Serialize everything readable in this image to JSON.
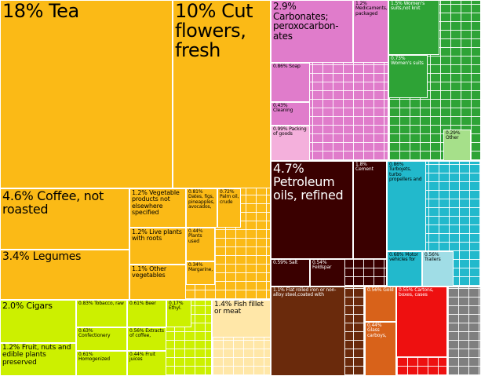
{
  "chart_data": {
    "type": "treemap",
    "tiles": [
      {
        "name": "Tea",
        "value": 18,
        "value_label": "18%",
        "color": "#fbba16"
      },
      {
        "name": "Cut flowers, fresh",
        "value": 10,
        "value_label": "10%",
        "color": "#fbba16"
      },
      {
        "name": "Coffee, not roasted",
        "value": 4.6,
        "value_label": "4.6%",
        "color": "#fbba16"
      },
      {
        "name": "Legumes",
        "value": 3.4,
        "value_label": "3.4%",
        "color": "#fbba16"
      },
      {
        "name": "Vegetable products not elsewhere specified",
        "value": 1.2,
        "value_label": "1.2%",
        "color": "#fbba16"
      },
      {
        "name": "Live plants with roots",
        "value": 1.2,
        "value_label": "1.2%",
        "color": "#fbba16"
      },
      {
        "name": "Other vegetables",
        "value": 1.1,
        "value_label": "1.1%",
        "color": "#fbba16"
      },
      {
        "name": "Dates, figs, pineapples, avocados,",
        "value": 0.81,
        "value_label": "0.81%",
        "color": "#fbba16"
      },
      {
        "name": "Palm oil, crude",
        "value": 0.72,
        "value_label": "0.72%",
        "color": "#fbba16"
      },
      {
        "name": "Plants used",
        "value": 0.44,
        "value_label": "0.44%",
        "color": "#fbba16"
      },
      {
        "name": "Margarine,",
        "value": 0.34,
        "value_label": "0.34%",
        "color": "#fbba16"
      },
      {
        "name": "Cigars",
        "value": 2,
        "value_label": "2.0%",
        "color": "#ccf000"
      },
      {
        "name": "Fruit, nuts and edible plants preserved",
        "value": 1.2,
        "value_label": "1.2%",
        "color": "#ccf000"
      },
      {
        "name": "Tobacco, raw",
        "value": 0.83,
        "value_label": "0.83%",
        "color": "#ccf000"
      },
      {
        "name": "Confectionery",
        "value": 0.63,
        "value_label": "0.63%",
        "color": "#ccf000"
      },
      {
        "name": "Homogenized",
        "value": 0.61,
        "value_label": "0.61%",
        "color": "#ccf000"
      },
      {
        "name": "Beer",
        "value": 0.61,
        "value_label": "0.61%",
        "color": "#ccf000"
      },
      {
        "name": "Extracts of coffee,",
        "value": 0.56,
        "value_label": "0.56%",
        "color": "#ccf000"
      },
      {
        "name": "Fruit juices",
        "value": 0.44,
        "value_label": "0.44%",
        "color": "#ccf000"
      },
      {
        "name": "Ethyl.",
        "value": 0.17,
        "value_label": "0.17%",
        "color": "#ccf000"
      },
      {
        "name": "Fish fillet or meat",
        "value": 1.4,
        "value_label": "1.4%",
        "color": "#ffe7a8"
      },
      {
        "name": "Carbonates; peroxocarbon-ates",
        "value": 2.9,
        "value_label": "2.9%",
        "color": "#e07ccb"
      },
      {
        "name": "Medicaments, packaged",
        "value": 1.2,
        "value_label": "1.2%",
        "color": "#e07ccb"
      },
      {
        "name": "Soap",
        "value": 0.86,
        "value_label": "0.86%",
        "color": "#e07ccb"
      },
      {
        "name": "Cleaning",
        "value": 0.43,
        "value_label": "0.43%",
        "color": "#e07ccb"
      },
      {
        "name": "Packing of goods",
        "value": 0.99,
        "value_label": "0.99%",
        "color": "#f4b0dc"
      },
      {
        "name": "Women's suits,not knit",
        "value": 1.5,
        "value_label": "1.5%",
        "color": "#2ea336"
      },
      {
        "name": "Women's suits",
        "value": 0.73,
        "value_label": "0.73%",
        "color": "#2ea336"
      },
      {
        "name": "Other",
        "value": 0.29,
        "value_label": "0.29%",
        "color": "#a6e08a"
      },
      {
        "name": "Petroleum oils, refined",
        "value": 4.7,
        "value_label": "4.7%",
        "color": "#3a0000"
      },
      {
        "name": "Cement",
        "value": 1.8,
        "value_label": "1.8%",
        "color": "#3a0000"
      },
      {
        "name": "Salt",
        "value": 0.59,
        "value_label": "0.59%",
        "color": "#3a0000"
      },
      {
        "name": "Feldspar",
        "value": 0.54,
        "value_label": "0.54%",
        "color": "#3a0000"
      },
      {
        "name": "Turbojets, turbo propellers and",
        "value": 0.86,
        "value_label": "0.86%",
        "color": "#22b9cc"
      },
      {
        "name": "Motor vehicles for",
        "value": 0.68,
        "value_label": "0.68%",
        "color": "#22b9cc"
      },
      {
        "name": "Trailers",
        "value": 0.56,
        "value_label": "0.56%",
        "color": "#a0dde6"
      },
      {
        "name": "Flat rolled iron or non-alloy steel,coated with",
        "value": 1.1,
        "value_label": "1.1%",
        "color": "#6a2a0c"
      },
      {
        "name": "Gold",
        "value": 0.56,
        "value_label": "0.56%",
        "color": "#d8621a"
      },
      {
        "name": "Glass carboys,",
        "value": 0.44,
        "value_label": "0.44%",
        "color": "#d8621a"
      },
      {
        "name": "Cartons, boxes, cases",
        "value": 0.55,
        "value_label": "0.55%",
        "color": "#ee1010"
      }
    ]
  }
}
